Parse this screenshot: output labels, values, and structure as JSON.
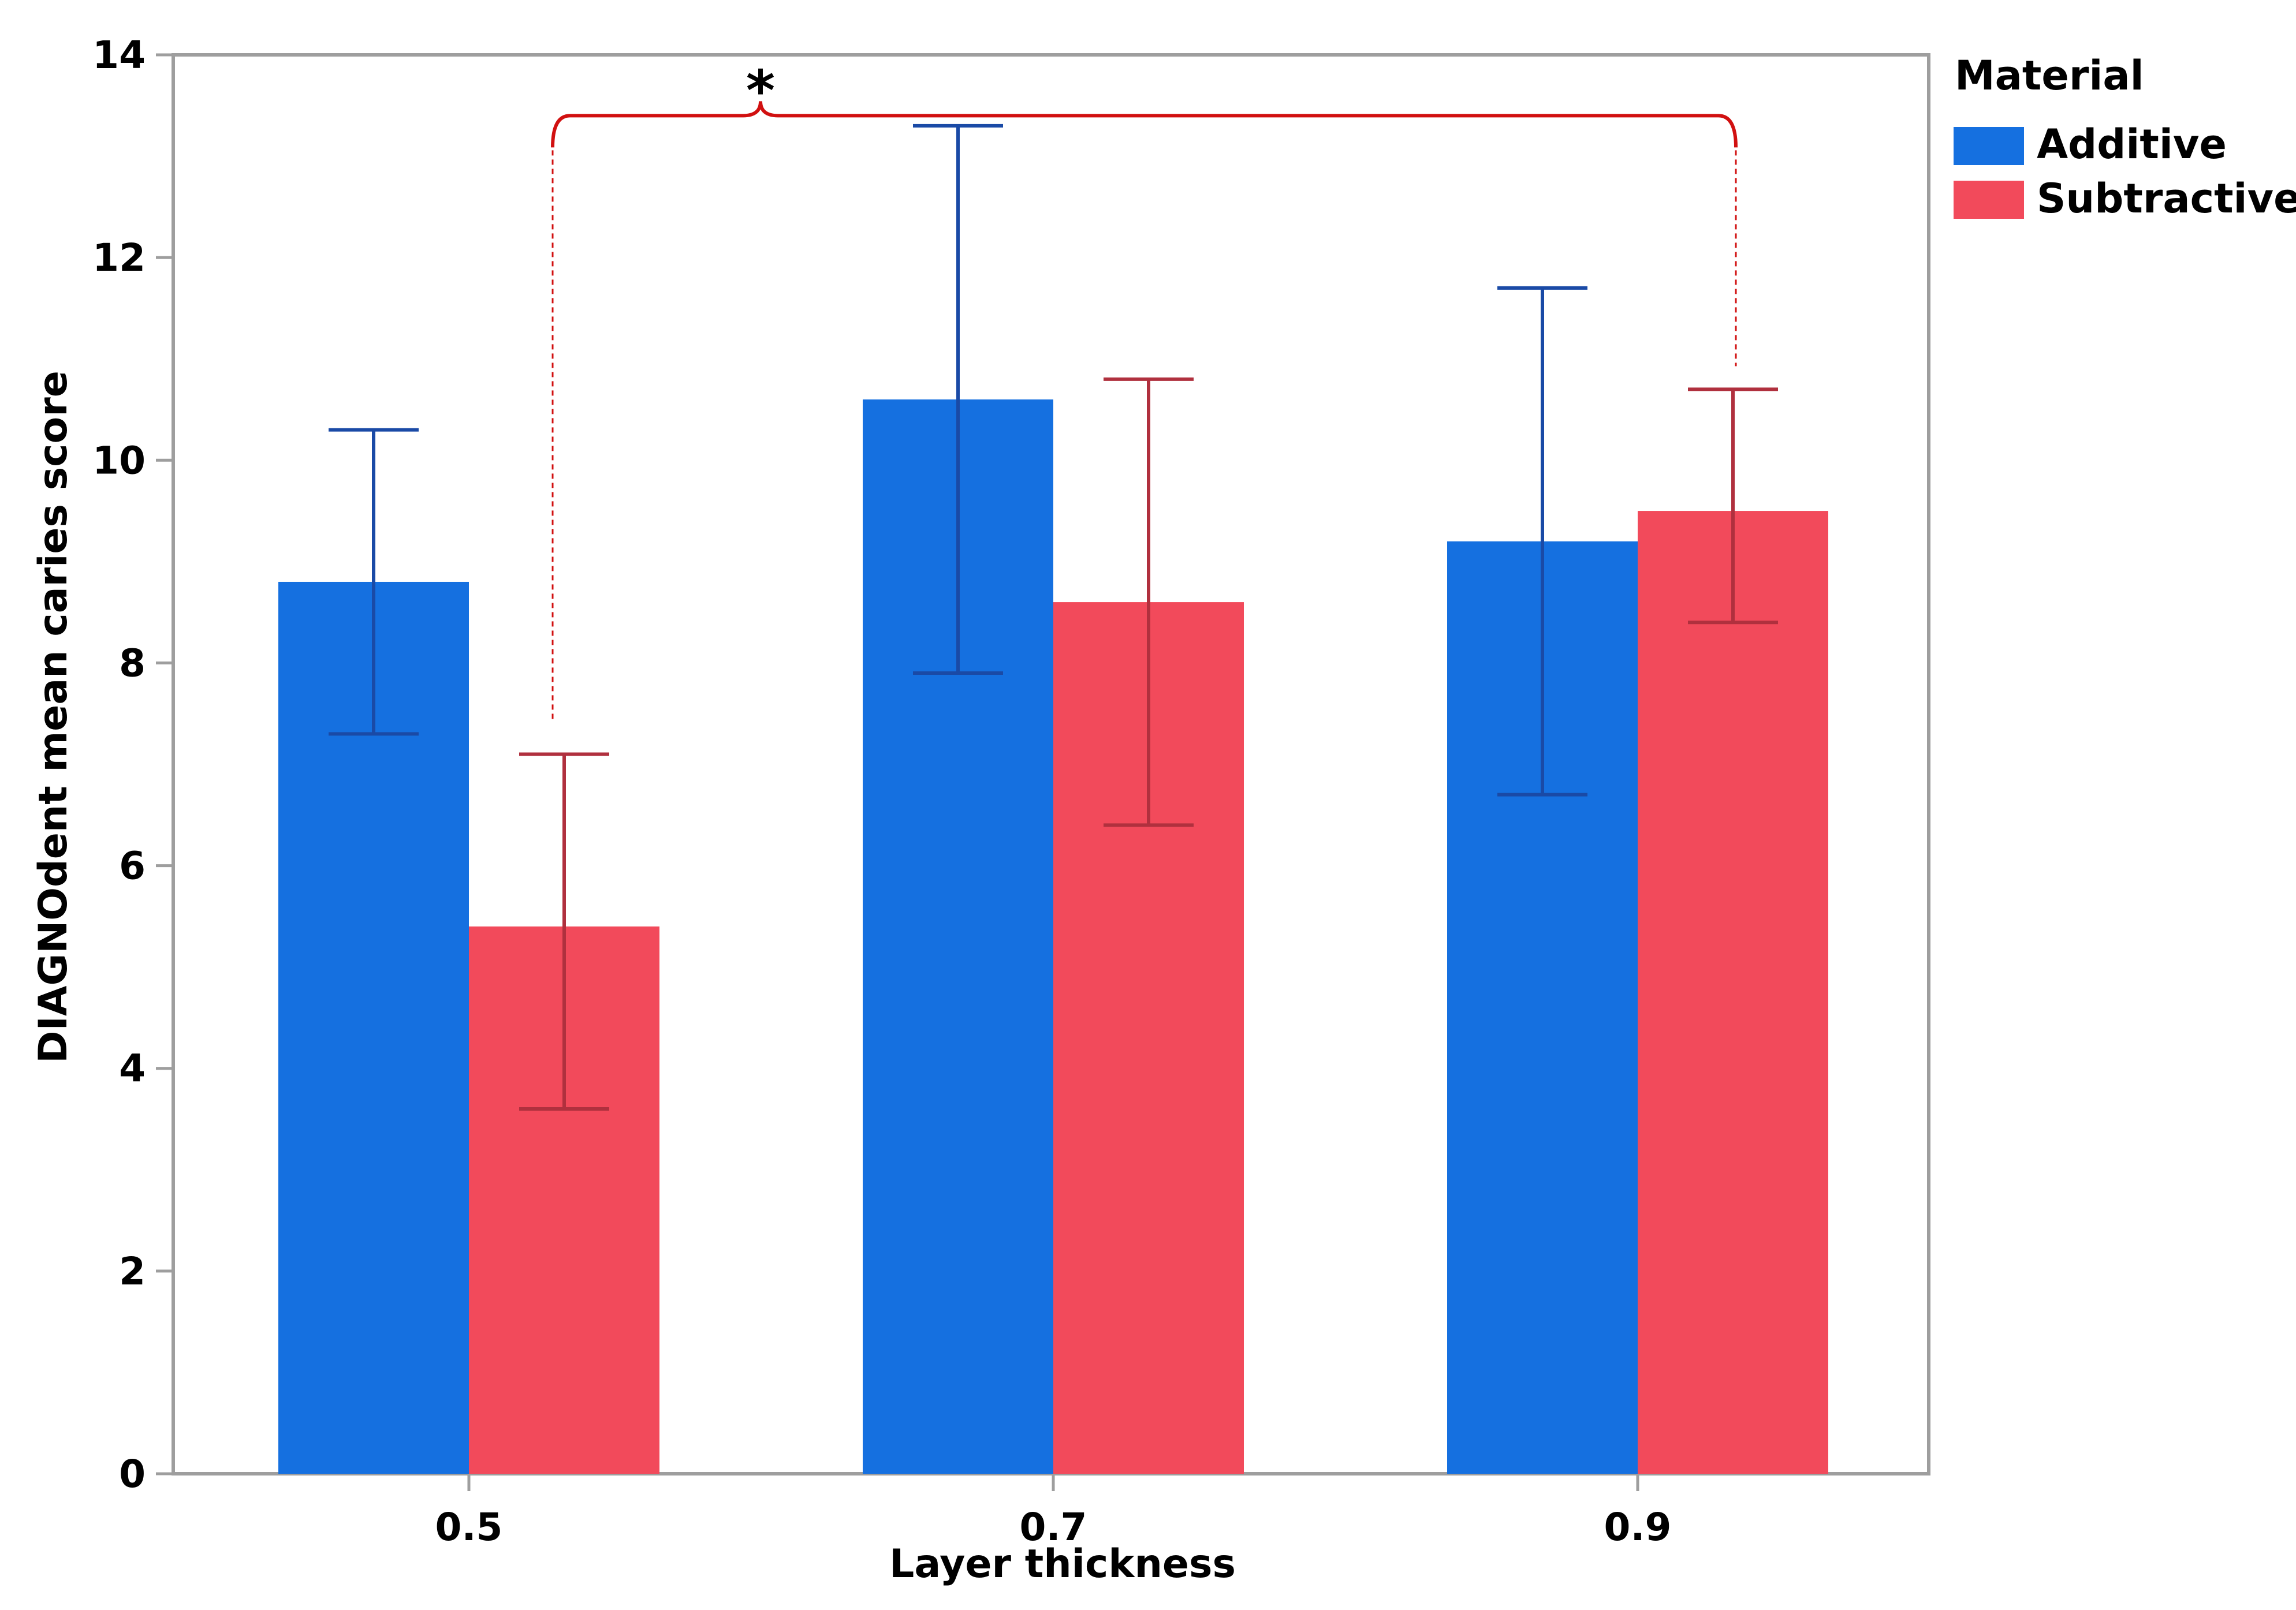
{
  "chart_data": {
    "type": "bar",
    "title": "",
    "xlabel": "Layer thickness",
    "ylabel": "DIAGNOdent mean caries score",
    "categories": [
      "0.5",
      "0.7",
      "0.9"
    ],
    "ylim": [
      0,
      14
    ],
    "yticks": [
      "0",
      "2",
      "4",
      "6",
      "8",
      "10",
      "12",
      "14"
    ],
    "grid": false,
    "legend": {
      "title": "Material",
      "position": "right"
    },
    "series": [
      {
        "name": "Additive",
        "color": "#1570E0",
        "error_color": "#1A4AA6",
        "values": [
          8.8,
          10.6,
          9.2
        ],
        "error_low": [
          7.3,
          7.9,
          6.7
        ],
        "error_high": [
          10.3,
          13.3,
          11.7
        ]
      },
      {
        "name": "Subtractive",
        "color": "#F24A5B",
        "error_color": "#B0303E",
        "values": [
          5.4,
          8.6,
          9.5
        ],
        "error_low": [
          3.6,
          6.4,
          8.4
        ],
        "error_high": [
          7.1,
          10.8,
          10.7
        ]
      }
    ],
    "annotation": {
      "text": "*",
      "color": "#D11010",
      "from": {
        "category": "0.5",
        "series": "Subtractive"
      },
      "to": {
        "category": "0.9",
        "series": "Subtractive"
      },
      "level": 13.4
    }
  }
}
